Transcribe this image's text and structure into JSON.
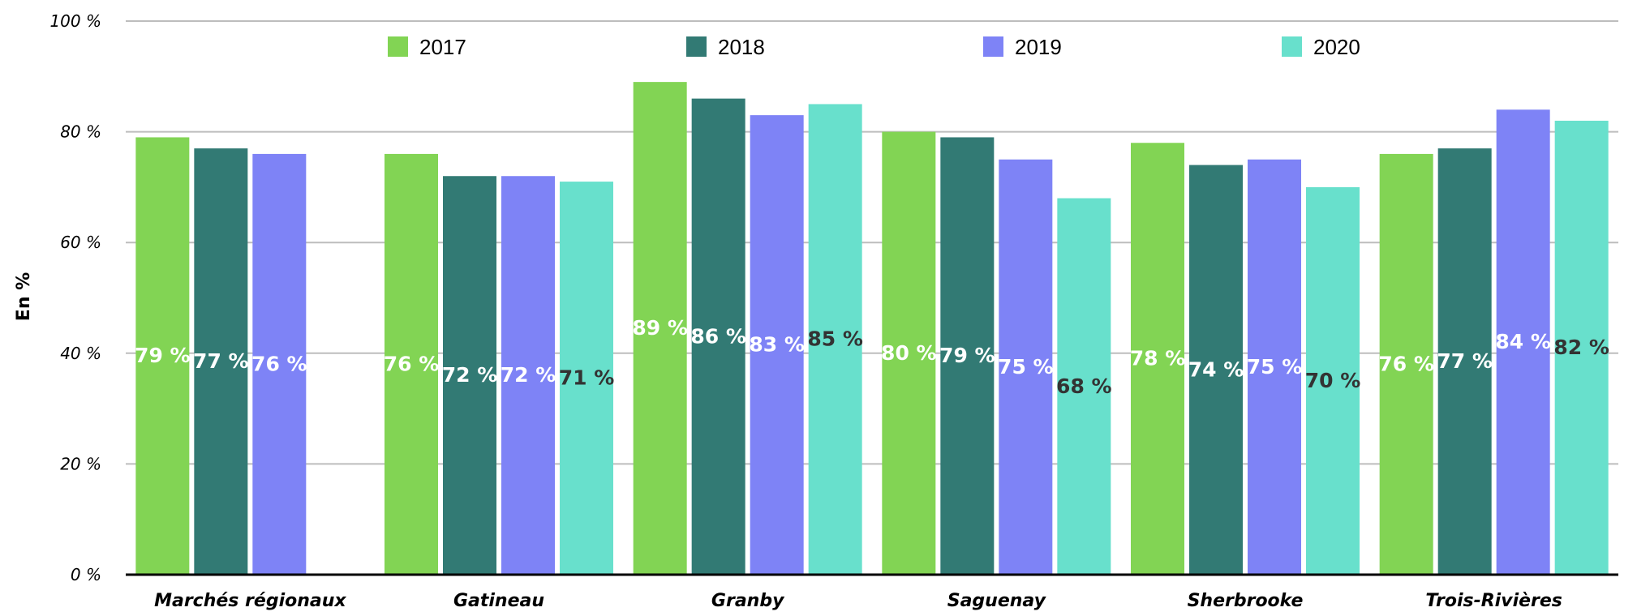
{
  "chart_data": {
    "type": "bar",
    "title": "",
    "xlabel": "",
    "ylabel": "En %",
    "ylim": [
      0,
      100
    ],
    "yticks": [
      "0 %",
      "20 %",
      "40 %",
      "60 %",
      "80 %",
      "100 %"
    ],
    "grid": true,
    "legend_position": "top",
    "categories": [
      "Marchés régionaux",
      "Gatineau",
      "Granby",
      "Saguenay",
      "Sherbrooke",
      "Trois-Rivières"
    ],
    "series": [
      {
        "name": "2017",
        "color": "#82d454",
        "values": [
          79,
          76,
          89,
          80,
          78,
          76
        ],
        "labels": [
          "79 %",
          "76 %",
          "89 %",
          "80 %",
          "78 %",
          "76 %"
        ]
      },
      {
        "name": "2018",
        "color": "#327a74",
        "values": [
          77,
          72,
          86,
          79,
          74,
          77
        ],
        "labels": [
          "77 %",
          "72 %",
          "86 %",
          "79 %",
          "74 %",
          "77 %"
        ]
      },
      {
        "name": "2019",
        "color": "#7e83f6",
        "values": [
          76,
          72,
          83,
          75,
          75,
          84
        ],
        "labels": [
          "76 %",
          "72 %",
          "83 %",
          "75 %",
          "75 %",
          "84 %"
        ]
      },
      {
        "name": "2020",
        "color": "#68e0cc",
        "values": [
          null,
          71,
          85,
          68,
          70,
          82
        ],
        "labels": [
          null,
          "71 %",
          "85 %",
          "68 %",
          "70 %",
          "82 %"
        ]
      }
    ],
    "label_colors": {
      "on_dark": "#ffffff",
      "on_light": "#333333"
    }
  }
}
